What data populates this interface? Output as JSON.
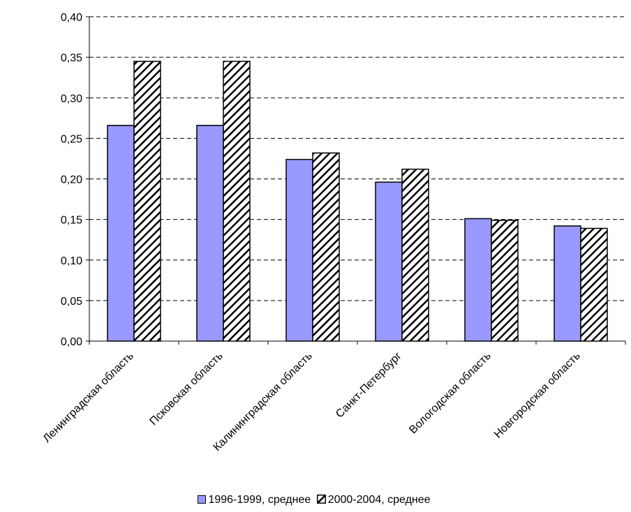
{
  "chart_data": {
    "type": "bar",
    "categories": [
      "Ленинградская область",
      "Псковская область",
      "Калининградская область",
      "Санкт-Петербург",
      "Вологодская область",
      "Новгородская область"
    ],
    "series": [
      {
        "name": "1996-1999, среднее",
        "values": [
          0.266,
          0.266,
          0.224,
          0.196,
          0.151,
          0.142
        ],
        "color": "#9999ff",
        "pattern": "solid"
      },
      {
        "name": "2000-2004, среднее",
        "values": [
          0.345,
          0.345,
          0.232,
          0.212,
          0.149,
          0.139
        ],
        "color": "#ffffff",
        "pattern": "diagonal-hatch"
      }
    ],
    "yticks": [
      "0,00",
      "0,05",
      "0,10",
      "0,15",
      "0,20",
      "0,25",
      "0,30",
      "0,35",
      "0,40"
    ],
    "ylim": [
      0,
      0.4
    ],
    "grid": true,
    "legend_position": "bottom"
  }
}
